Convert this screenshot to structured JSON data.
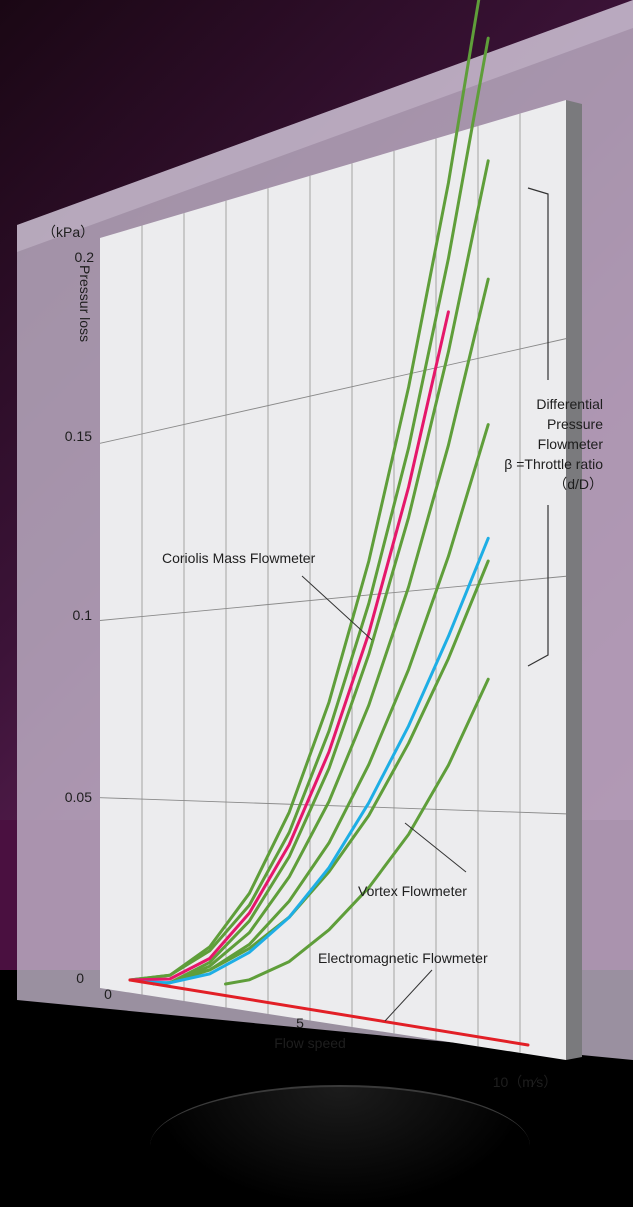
{
  "chart_data": {
    "type": "line",
    "xlabel": "Flow speed",
    "ylabel": "Pressur loss",
    "y_unit": "（kPa）",
    "x_unit_label": "10（m⁄s）",
    "xlim": [
      0,
      10
    ],
    "ylim": [
      0,
      0.2
    ],
    "x_ticks": [
      "0",
      "5"
    ],
    "y_ticks": [
      "0",
      "0.05",
      "0.1",
      "0.15",
      "0.2"
    ],
    "y_tick_values": [
      0,
      0.05,
      0.1,
      0.15,
      0.2
    ],
    "series": [
      {
        "name": "Coriolis Mass Flowmeter",
        "color": "#e5176a",
        "x": [
          0,
          1,
          2,
          3,
          4,
          5,
          6,
          7,
          8
        ],
        "y": [
          0,
          0.002,
          0.009,
          0.022,
          0.04,
          0.063,
          0.091,
          0.124,
          0.162
        ]
      },
      {
        "name": "Vortex Flowmeter",
        "color": "#1eaee5",
        "x": [
          0.3,
          1,
          2,
          3,
          4,
          5,
          6,
          7,
          8,
          9
        ],
        "y": [
          0,
          0.001,
          0.005,
          0.012,
          0.022,
          0.035,
          0.051,
          0.069,
          0.089,
          0.11
        ]
      },
      {
        "name": "Electromagnetic Flowmeter",
        "color": "#e21f26",
        "x": [
          0,
          10
        ],
        "y": [
          0,
          0
        ]
      },
      {
        "name": "Differential Pressure Flowmeter",
        "color": "#5f9e3a",
        "x": [
          0,
          1,
          2,
          3,
          4,
          5,
          6,
          7,
          8,
          9
        ],
        "y": [
          0,
          0.003,
          0.012,
          0.027,
          0.048,
          0.075,
          0.108,
          0.147,
          0.191,
          0.241
        ]
      },
      {
        "name": "Differential Pressure Flowmeter",
        "color": "#5f9e3a",
        "x": [
          0,
          1,
          2,
          3,
          4,
          5,
          6,
          7,
          8,
          9
        ],
        "y": [
          0,
          0.003,
          0.011,
          0.024,
          0.043,
          0.068,
          0.098,
          0.133,
          0.174,
          0.22
        ]
      },
      {
        "name": "Differential Pressure Flowmeter",
        "color": "#5f9e3a",
        "x": [
          0.6,
          1,
          2,
          3,
          4,
          5,
          6,
          7,
          8,
          9
        ],
        "y": [
          0,
          0.001,
          0.008,
          0.02,
          0.037,
          0.059,
          0.086,
          0.117,
          0.153,
          0.193
        ]
      },
      {
        "name": "Differential Pressure Flowmeter",
        "color": "#5f9e3a",
        "x": [
          0.6,
          1,
          2,
          3,
          4,
          5,
          6,
          7,
          8,
          9
        ],
        "y": [
          0,
          0.001,
          0.007,
          0.017,
          0.032,
          0.051,
          0.074,
          0.101,
          0.132,
          0.167
        ]
      },
      {
        "name": "Differential Pressure Flowmeter",
        "color": "#5f9e3a",
        "x": [
          0.6,
          1,
          2,
          3,
          4,
          5,
          6,
          7,
          8,
          9
        ],
        "y": [
          0,
          0.001,
          0.006,
          0.014,
          0.026,
          0.041,
          0.06,
          0.082,
          0.107,
          0.135
        ]
      },
      {
        "name": "Differential Pressure Flowmeter",
        "color": "#5f9e3a",
        "x": [
          1.5,
          2,
          3,
          4,
          5,
          6,
          7,
          8,
          9
        ],
        "y": [
          0.004,
          0.006,
          0.013,
          0.022,
          0.034,
          0.048,
          0.065,
          0.084,
          0.105
        ]
      },
      {
        "name": "Differential Pressure Flowmeter",
        "color": "#5f9e3a",
        "x": [
          2.4,
          3,
          4,
          5,
          6,
          7,
          8,
          9
        ],
        "y": [
          0.003,
          0.005,
          0.011,
          0.02,
          0.031,
          0.044,
          0.06,
          0.079
        ]
      }
    ],
    "annotations": {
      "coriolis": "Coriolis Mass Flowmeter",
      "vortex": "Vortex Flowmeter",
      "electromagnetic": "Electromagnetic Flowmeter",
      "dp_line1": "Differential",
      "dp_line2": "Pressure",
      "dp_line3": "Flowmeter",
      "beta_line": "β =Throttle ratio",
      "beta_sub": "（d/D）"
    },
    "grid": true,
    "colors": {
      "panel": "#ececee",
      "grid": "#a3a3a3",
      "glass": "#c5b8cd"
    }
  }
}
